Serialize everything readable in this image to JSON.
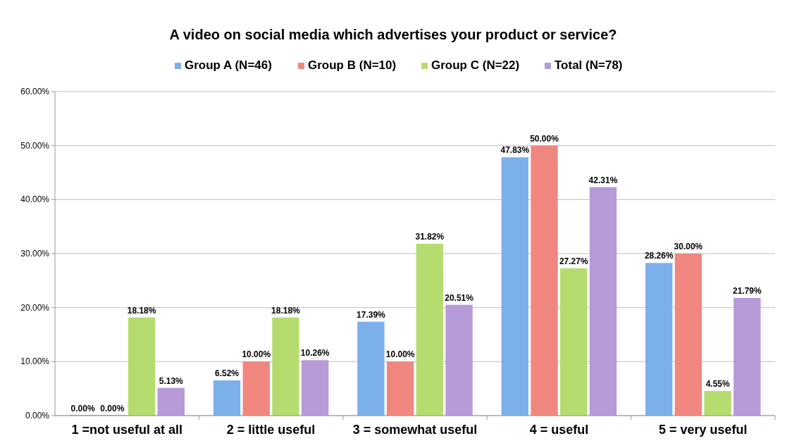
{
  "chart_data": {
    "type": "bar",
    "title": "A video on social media which advertises your product or service?",
    "categories": [
      "1 =not useful at all",
      "2 = little useful",
      "3 = somewhat useful",
      "4 = useful",
      "5 = very useful"
    ],
    "series": [
      {
        "name": "Group A (N=46)",
        "color": "#7cb0ea",
        "values": [
          0,
          6.52,
          17.39,
          47.83,
          28.26
        ],
        "value_labels": [
          "0.00%",
          "6.52%",
          "17.39%",
          "47.83%",
          "28.26%"
        ]
      },
      {
        "name": "Group B (N=10)",
        "color": "#f0877f",
        "values": [
          0,
          10,
          10,
          50,
          30
        ],
        "value_labels": [
          "0.00%",
          "10.00%",
          "10.00%",
          "50.00%",
          "30.00%"
        ]
      },
      {
        "name": "Group C (N=22)",
        "color": "#b6dc70",
        "values": [
          18.18,
          18.18,
          31.82,
          27.27,
          4.55
        ],
        "value_labels": [
          "18.18%",
          "18.18%",
          "31.82%",
          "27.27%",
          "4.55%"
        ]
      },
      {
        "name": "Total (N=78)",
        "color": "#b69ad8",
        "values": [
          5.13,
          10.26,
          20.51,
          42.31,
          21.79
        ],
        "value_labels": [
          "5.13%",
          "10.26%",
          "20.51%",
          "42.31%",
          "21.79%"
        ]
      }
    ],
    "ylim": [
      0,
      60
    ],
    "yticks": [
      {
        "value": 0,
        "label": "0.00%"
      },
      {
        "value": 10,
        "label": "10.00%"
      },
      {
        "value": 20,
        "label": "20.00%"
      },
      {
        "value": 30,
        "label": "30.00%"
      },
      {
        "value": 40,
        "label": "40.00%"
      },
      {
        "value": 50,
        "label": "50.00%"
      },
      {
        "value": 60,
        "label": "60.00%"
      }
    ],
    "grid": "y",
    "legend": "top"
  }
}
